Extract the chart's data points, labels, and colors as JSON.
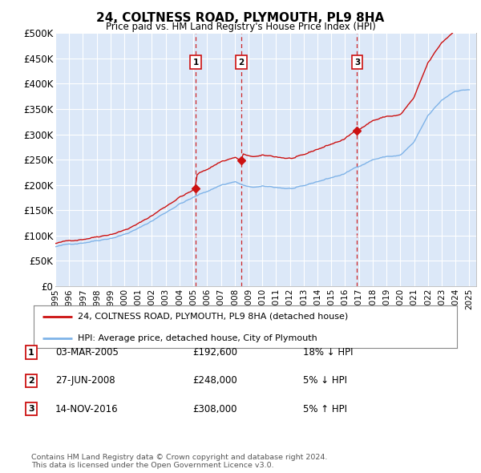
{
  "title": "24, COLTNESS ROAD, PLYMOUTH, PL9 8HA",
  "subtitle": "Price paid vs. HM Land Registry's House Price Index (HPI)",
  "ylim": [
    0,
    500000
  ],
  "yticks": [
    0,
    50000,
    100000,
    150000,
    200000,
    250000,
    300000,
    350000,
    400000,
    450000,
    500000
  ],
  "ytick_labels": [
    "£0",
    "£50K",
    "£100K",
    "£150K",
    "£200K",
    "£250K",
    "£300K",
    "£350K",
    "£400K",
    "£450K",
    "£500K"
  ],
  "background_color": "#ffffff",
  "plot_bg_color": "#dce8f8",
  "grid_color": "#ffffff",
  "hpi_line_color": "#7fb3e8",
  "price_line_color": "#cc1111",
  "vline_color": "#cc1111",
  "legend_label_red": "24, COLTNESS ROAD, PLYMOUTH, PL9 8HA (detached house)",
  "legend_label_blue": "HPI: Average price, detached house, City of Plymouth",
  "transactions": [
    {
      "num": 1,
      "date": "03-MAR-2005",
      "price": 192600,
      "pct": "18%",
      "dir": "↓",
      "year": 2005.17
    },
    {
      "num": 2,
      "date": "27-JUN-2008",
      "price": 248000,
      "pct": "5%",
      "dir": "↓",
      "year": 2008.49
    },
    {
      "num": 3,
      "date": "14-NOV-2016",
      "price": 308000,
      "pct": "5%",
      "dir": "↑",
      "year": 2016.87
    }
  ],
  "footer": "Contains HM Land Registry data © Crown copyright and database right 2024.\nThis data is licensed under the Open Government Licence v3.0."
}
